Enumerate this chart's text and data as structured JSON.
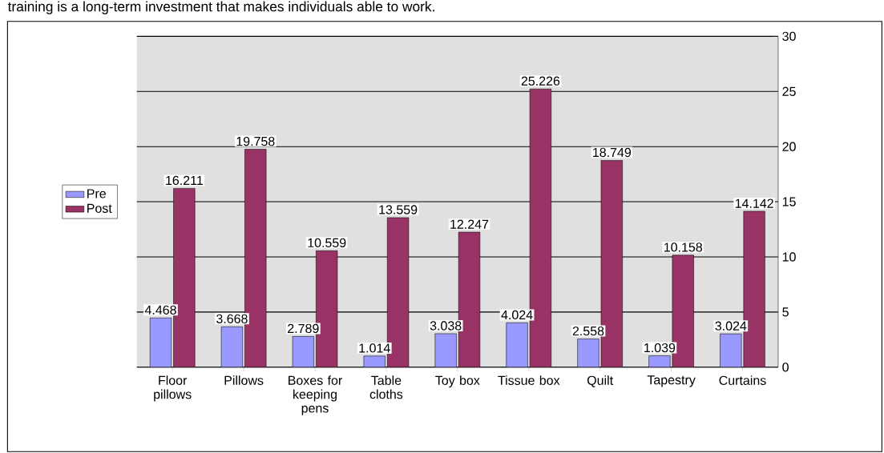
{
  "chart_data": {
    "type": "bar",
    "annotations": [
      "training is a long-term investment that makes individuals able to work."
    ],
    "categories": [
      "Floor pillows",
      "Pillows",
      "Boxes for keeping pens",
      "Table cloths",
      "Toy box",
      "Tissue box",
      "Quilt",
      "Tapestry",
      "Curtains"
    ],
    "series": [
      {
        "name": "Pre",
        "color": "#9999ff",
        "values": [
          4.468,
          3.668,
          2.789,
          1.014,
          3.038,
          4.024,
          2.558,
          1.039,
          3.024
        ]
      },
      {
        "name": "Post",
        "color": "#993366",
        "values": [
          16.211,
          19.758,
          10.559,
          13.559,
          12.247,
          25.226,
          18.749,
          10.158,
          14.142
        ]
      }
    ],
    "ylim": [
      0,
      30
    ],
    "yticks": [
      0,
      5,
      10,
      15,
      20,
      25,
      30
    ],
    "grid": "y",
    "legend": "left",
    "data_labels": true
  }
}
